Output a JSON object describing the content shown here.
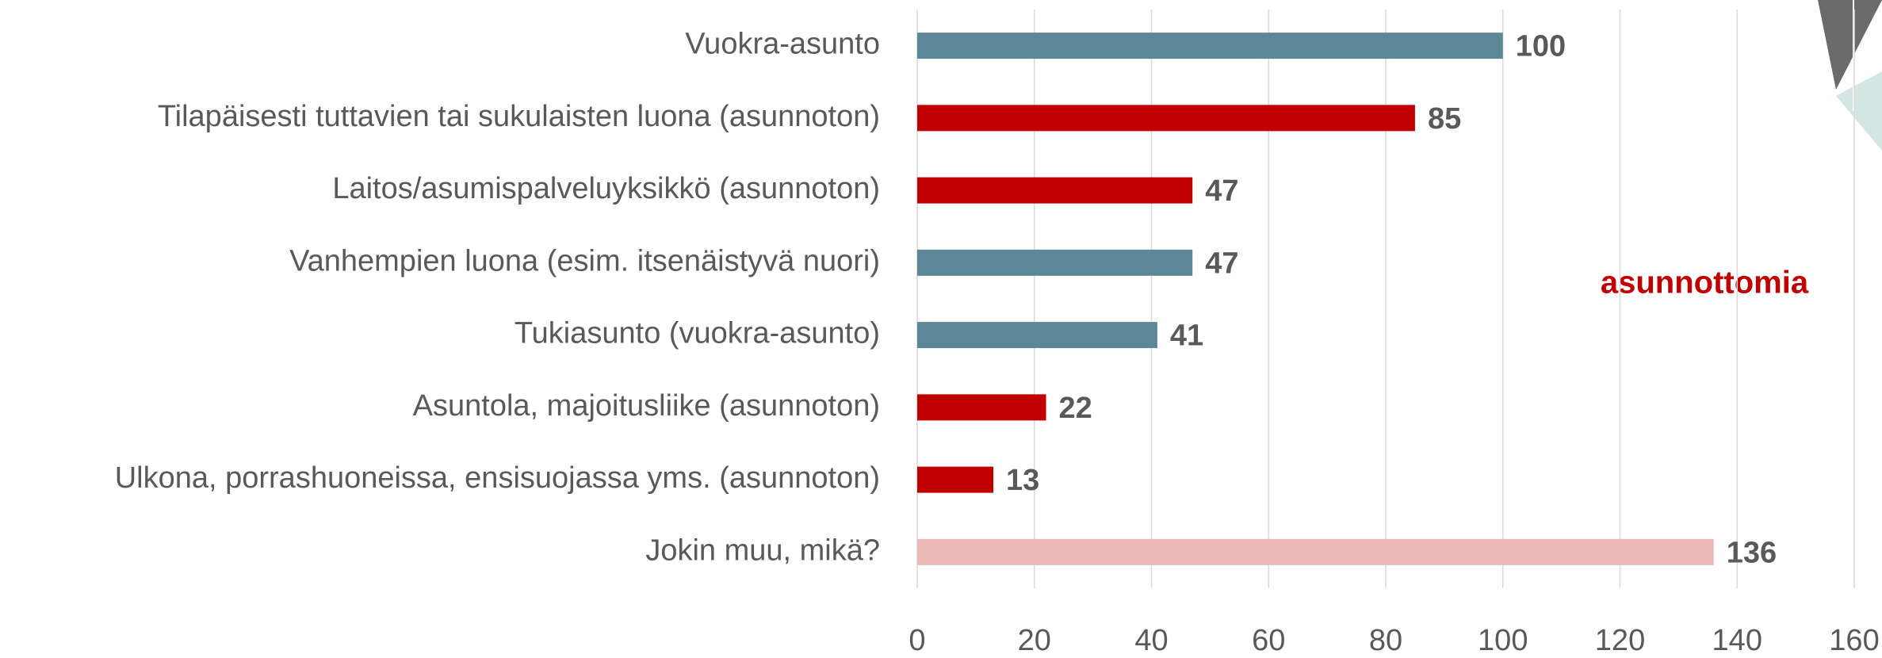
{
  "chart_data": {
    "type": "barh",
    "categories": [
      "Vuokra-asunto",
      "Tilapäisesti tuttavien tai sukulaisten luona (asunnoton)",
      "Laitos/asumispalveluyksikkö (asunnoton)",
      "Vanhempien luona (esim. itsenäistyvä nuori)",
      "Tukiasunto (vuokra-asunto)",
      "Asuntola, majoitusliike (asunnoton)",
      "Ulkona, porrashuoneissa, ensisuojassa yms. (asunnoton)",
      "Jokin muu, mikä?"
    ],
    "values": [
      100,
      85,
      47,
      47,
      41,
      22,
      13,
      136
    ],
    "colors": [
      "#5b8796",
      "#c00000",
      "#c00000",
      "#5b8796",
      "#5b8796",
      "#c00000",
      "#c00000",
      "#e8b9b8"
    ],
    "xlim": [
      0,
      160
    ],
    "xticks": [
      0,
      20,
      40,
      60,
      80,
      100,
      120,
      140,
      160
    ],
    "grid": true,
    "annotation": "asunnottomia"
  }
}
